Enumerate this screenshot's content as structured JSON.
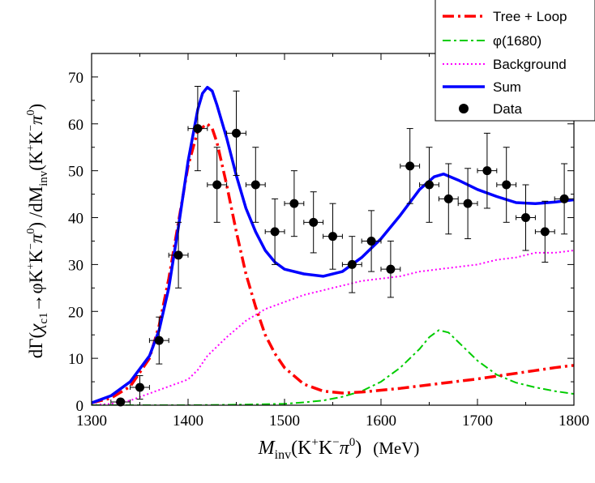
{
  "chart_data": {
    "type": "line",
    "xlabel": "M_inv(K⁺K⁻π⁰) (MeV)",
    "ylabel": "dΓ(χc1→φK⁺K⁻π⁰) / dM_inv(K⁺K⁻π⁰)",
    "xlim": [
      1300,
      1800
    ],
    "ylim": [
      0,
      75
    ],
    "x_ticks": [
      1300,
      1400,
      1500,
      1600,
      1700,
      1800
    ],
    "y_ticks": [
      0,
      10,
      20,
      30,
      40,
      50,
      60,
      70
    ],
    "grid": false,
    "legend_position": "top-right",
    "x_title_parts": {
      "main": "M",
      "sub": "inv",
      "paren_open": "(K",
      "sup1": "+",
      "mid": "K",
      "sup2": "−",
      "pi": "π",
      "sup3": "0",
      "paren_close": ")",
      "unit": "(MeV)"
    },
    "y_title_parts": {
      "a": "dΓ(",
      "chi": "χ",
      "chi_sub": "c1",
      "b": "→φK",
      "sup1": "+",
      "c": "K",
      "sup2": "−",
      "d": "π",
      "sup3": "0",
      "e": ") /dM",
      "sub": "inv",
      "f": "(K",
      "sup4": "+",
      "g": "K",
      "sup5": "−",
      "h": "π",
      "sup6": "0",
      "i": ")"
    },
    "series": [
      {
        "name": "Tree + Loop",
        "style": "dashdot",
        "color": "#ff0000",
        "x": [
          1300,
          1320,
          1340,
          1360,
          1370,
          1380,
          1390,
          1400,
          1410,
          1420,
          1425,
          1430,
          1440,
          1450,
          1460,
          1470,
          1480,
          1490,
          1500,
          1520,
          1540,
          1560,
          1580,
          1600,
          1620,
          1640,
          1660,
          1680,
          1700,
          1720,
          1740,
          1760,
          1780,
          1800
        ],
        "y": [
          0.5,
          1.5,
          4,
          10,
          17,
          27,
          39,
          51,
          58.5,
          60,
          59,
          56,
          47,
          37,
          28,
          21,
          15,
          11,
          8,
          4.5,
          3,
          2.6,
          2.8,
          3.2,
          3.6,
          4.1,
          4.6,
          5.1,
          5.6,
          6.2,
          6.8,
          7.4,
          8.0,
          8.5
        ]
      },
      {
        "name": "φ(1680)",
        "style": "dashdot",
        "color": "#00cc00",
        "x": [
          1300,
          1400,
          1450,
          1500,
          1520,
          1540,
          1560,
          1580,
          1600,
          1620,
          1640,
          1650,
          1660,
          1670,
          1680,
          1700,
          1720,
          1740,
          1760,
          1780,
          1800
        ],
        "y": [
          0,
          0,
          0.1,
          0.3,
          0.6,
          1.0,
          1.8,
          3.0,
          5.0,
          8.0,
          12.0,
          14.5,
          16,
          15.5,
          13.5,
          9.5,
          6.5,
          4.8,
          3.8,
          3.0,
          2.4
        ]
      },
      {
        "name": "Background",
        "style": "dotted",
        "color": "#ff00ff",
        "x": [
          1300,
          1320,
          1340,
          1360,
          1380,
          1400,
          1410,
          1420,
          1440,
          1460,
          1480,
          1500,
          1520,
          1540,
          1560,
          1580,
          1600,
          1620,
          1640,
          1660,
          1680,
          1700,
          1720,
          1740,
          1760,
          1780,
          1800
        ],
        "y": [
          0,
          0.3,
          1.0,
          2.5,
          4.0,
          5.5,
          7.5,
          10.5,
          14.5,
          18,
          20.5,
          22,
          23.5,
          24.5,
          25.5,
          26.5,
          27,
          27.5,
          28.5,
          29,
          29.5,
          30,
          31,
          31.5,
          32.5,
          32.5,
          33
        ]
      },
      {
        "name": "Sum",
        "style": "solid",
        "color": "#0000ff",
        "x": [
          1300,
          1320,
          1340,
          1360,
          1370,
          1380,
          1390,
          1400,
          1410,
          1415,
          1420,
          1425,
          1430,
          1440,
          1450,
          1460,
          1470,
          1480,
          1490,
          1500,
          1520,
          1540,
          1560,
          1580,
          1600,
          1620,
          1640,
          1655,
          1665,
          1680,
          1700,
          1720,
          1740,
          1760,
          1780,
          1800
        ],
        "y": [
          0.5,
          2.0,
          5.0,
          10.5,
          16,
          25,
          38,
          52,
          63,
          66.5,
          67.8,
          67,
          64,
          57,
          49,
          42,
          37,
          33,
          30.5,
          29,
          28,
          27.5,
          28.5,
          31.5,
          35.5,
          40.5,
          46,
          48.7,
          49.3,
          48,
          46,
          44.5,
          43.2,
          43,
          43.3,
          43.8
        ]
      }
    ],
    "data_points": {
      "name": "Data",
      "x": [
        1330,
        1350,
        1370,
        1390,
        1410,
        1430,
        1450,
        1470,
        1490,
        1510,
        1530,
        1550,
        1570,
        1590,
        1610,
        1630,
        1650,
        1670,
        1690,
        1710,
        1730,
        1750,
        1770,
        1790
      ],
      "y": [
        0.7,
        3.8,
        13.8,
        32,
        59,
        47,
        58,
        47,
        37,
        43,
        39,
        36,
        30,
        35,
        29,
        51,
        47,
        44,
        43,
        50,
        47,
        40,
        37,
        44
      ],
      "yerr": [
        0.5,
        2.5,
        5.0,
        7.0,
        9.0,
        8.0,
        9.0,
        8.0,
        7.0,
        7.0,
        6.5,
        7.0,
        6.0,
        6.5,
        6.0,
        8.0,
        8.0,
        7.5,
        7.5,
        8.0,
        8.0,
        7.0,
        6.5,
        7.5
      ],
      "xerr": 10
    }
  }
}
